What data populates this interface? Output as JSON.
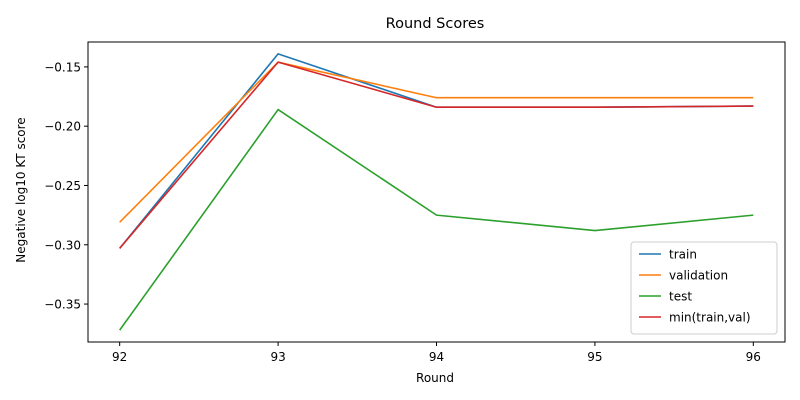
{
  "chart_data": {
    "type": "line",
    "title": "Round Scores",
    "xlabel": "Round",
    "ylabel": "Negative log10 KT score",
    "x": [
      92,
      93,
      94,
      95,
      96
    ],
    "xlim": [
      91.8,
      96.2
    ],
    "ylim": [
      -0.382,
      -0.129
    ],
    "xticks": [
      92,
      93,
      94,
      95,
      96
    ],
    "yticks": [
      -0.15,
      -0.2,
      -0.25,
      -0.3,
      -0.35
    ],
    "ytick_labels": [
      "−0.15",
      "−0.20",
      "−0.25",
      "−0.30",
      "−0.35"
    ],
    "grid": false,
    "legend_position": "lower-right",
    "series": [
      {
        "name": "train",
        "color": "#1f77b4",
        "values": [
          -0.303,
          -0.139,
          -0.184,
          -0.184,
          -0.183
        ]
      },
      {
        "name": "validation",
        "color": "#ff7f0e",
        "values": [
          -0.281,
          -0.146,
          -0.176,
          -0.176,
          -0.176
        ]
      },
      {
        "name": "test",
        "color": "#2ca02c",
        "values": [
          -0.372,
          -0.186,
          -0.275,
          -0.288,
          -0.275
        ]
      },
      {
        "name": "min(train,val)",
        "color": "#d62728",
        "values": [
          -0.303,
          -0.146,
          -0.184,
          -0.184,
          -0.183
        ]
      }
    ]
  }
}
